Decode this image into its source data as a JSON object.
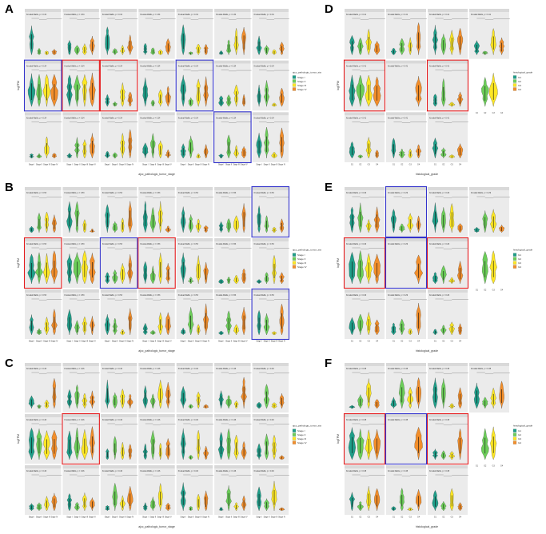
{
  "colors": {
    "stage_i": "#1f9e89",
    "stage_ii": "#6cce59",
    "stage_iii": "#fde725",
    "stage_iv": "#f28e2b",
    "grade_g1": "#1f9e89",
    "grade_g2": "#6cce59",
    "grade_g3": "#fde725",
    "grade_g4": "#f28e2b",
    "facet_bg": "#ebebeb",
    "strip_bg": "#d9d9d9",
    "highlight_red": "#e41a1c",
    "highlight_blue": "#3333cc"
  },
  "chart_data": [
    {
      "panel": "A",
      "type": "violin",
      "rows": 3,
      "cols": 7,
      "xlabel": "ajcc_pathologic_tumor_stage",
      "ylabel": "logTPM",
      "legend_title": "ajcc_pathologic_tumor_stage",
      "categories": [
        "Stage I",
        "Stage II",
        "Stage III",
        "Stage IV"
      ],
      "legend_items": [
        "Stage I",
        "Stage II",
        "Stage III",
        "Stage IV"
      ],
      "test_label": "Kruskal-Wallis, p = 0.34",
      "tick_labels": [
        "Stage I",
        "Stage II",
        "Stage III",
        "Stage IV"
      ],
      "red_boxes": [
        [
          1,
          1
        ],
        [
          1,
          2
        ]
      ],
      "blue_boxes": [
        [
          1,
          0
        ],
        [
          1,
          4
        ],
        [
          2,
          5
        ]
      ]
    },
    {
      "panel": "B",
      "type": "violin",
      "rows": 3,
      "cols": 7,
      "xlabel": "ajcc_pathologic_tumor_stage",
      "ylabel": "logTPM",
      "legend_title": "ajcc_pathologic_tumor_stage",
      "categories": [
        "Stage I",
        "Stage II",
        "Stage III",
        "Stage IV"
      ],
      "legend_items": [
        "Stage I",
        "Stage II",
        "Stage III",
        "Stage IV"
      ],
      "test_label": "Kruskal-Wallis, p = 0.53",
      "tick_labels": [
        "Stage I",
        "Stage II",
        "Stage III",
        "Stage IV"
      ],
      "red_boxes": [
        [
          1,
          0
        ],
        [
          1,
          3
        ]
      ],
      "blue_boxes": [
        [
          0,
          6
        ],
        [
          1,
          2
        ],
        [
          2,
          6
        ]
      ]
    },
    {
      "panel": "C",
      "type": "violin",
      "rows": 3,
      "cols": 7,
      "xlabel": "ajcc_pathologic_tumor_stage",
      "ylabel": "logTPM",
      "legend_title": "ajcc_pathologic_tumor_stage",
      "categories": [
        "Stage I",
        "Stage II",
        "Stage III",
        "Stage IV"
      ],
      "legend_items": [
        "Stage I",
        "Stage II",
        "Stage III",
        "Stage IV"
      ],
      "test_label": "Kruskal-Wallis, p = 0.46",
      "tick_labels": [
        "Stage I",
        "Stage II",
        "Stage III",
        "Stage IV"
      ],
      "red_boxes": [
        [
          1,
          1
        ]
      ],
      "blue_boxes": []
    },
    {
      "panel": "D",
      "type": "violin",
      "rows": 3,
      "cols": 4,
      "xlabel": "histological_grade",
      "ylabel": "logTPM",
      "legend_title": "histological_grade",
      "categories": [
        "G1",
        "G2",
        "G3",
        "G4"
      ],
      "legend_items": [
        "G1",
        "G2",
        "G3",
        "G4"
      ],
      "test_label": "Kruskal-Wallis, p = 0.41",
      "tick_labels": [
        "G1",
        "G2",
        "G3",
        "G4"
      ],
      "red_boxes": [
        [
          1,
          0
        ],
        [
          1,
          2
        ]
      ],
      "blue_boxes": []
    },
    {
      "panel": "E",
      "type": "violin",
      "rows": 3,
      "cols": 4,
      "xlabel": "histological_grade",
      "ylabel": "logTPM",
      "legend_title": "histological_grade",
      "categories": [
        "G1",
        "G2",
        "G3",
        "G4"
      ],
      "legend_items": [
        "G1",
        "G2",
        "G3",
        "G4"
      ],
      "test_label": "Kruskal-Wallis, p = 0.29",
      "tick_labels": [
        "G1",
        "G2",
        "G3",
        "G4"
      ],
      "red_boxes": [
        [
          1,
          0
        ],
        [
          1,
          2
        ]
      ],
      "blue_boxes": [
        [
          0,
          1
        ],
        [
          1,
          1
        ]
      ]
    },
    {
      "panel": "F",
      "type": "violin",
      "rows": 3,
      "cols": 4,
      "xlabel": "histological_grade",
      "ylabel": "logTPM",
      "legend_title": "histological_grade",
      "categories": [
        "G1",
        "G2",
        "G3",
        "G4"
      ],
      "legend_items": [
        "G1",
        "G2",
        "G3",
        "G4"
      ],
      "test_label": "Kruskal-Wallis, p = 0.38",
      "tick_labels": [
        "G1",
        "G2",
        "G3",
        "G4"
      ],
      "red_boxes": [
        [
          1,
          0
        ],
        [
          1,
          2
        ]
      ],
      "blue_boxes": [
        [
          1,
          1
        ]
      ]
    }
  ]
}
